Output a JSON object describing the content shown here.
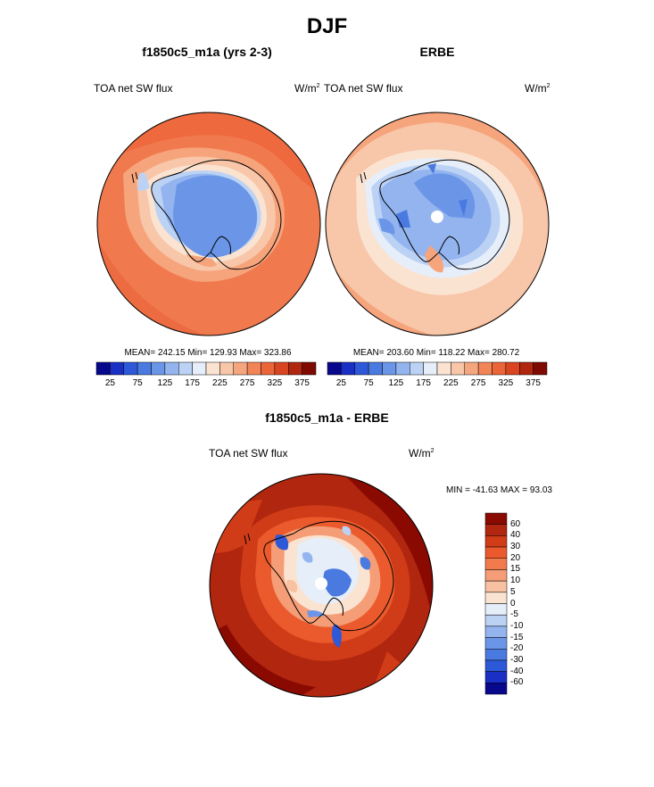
{
  "page": {
    "title": "DJF",
    "bottom_title": "f1850c5_m1a - ERBE"
  },
  "panels": {
    "left": {
      "title": "f1850c5_m1a (yrs 2-3)",
      "variable": "TOA net SW flux",
      "units": "W/m",
      "units_sup": "2",
      "stats": "MEAN= 242.15  Min= 129.93  Max= 323.86"
    },
    "right": {
      "title": "ERBE",
      "variable": "TOA net SW flux",
      "units": "W/m",
      "units_sup": "2",
      "stats": "MEAN= 203.60  Min= 118.22  Max= 280.72"
    },
    "diff": {
      "variable": "TOA net SW flux",
      "units": "W/m",
      "units_sup": "2",
      "stats": "MIN = -41.63 MAX =  93.03"
    }
  },
  "colorbar_abs": {
    "colors": [
      "#08088c",
      "#1a2fc4",
      "#2d58d8",
      "#4a7ae0",
      "#6b96e8",
      "#93b4ee",
      "#bcd2f4",
      "#e6eefa",
      "#fbe3d2",
      "#f8c6a8",
      "#f5a67e",
      "#f28558",
      "#ec6538",
      "#d84520",
      "#b0260f",
      "#7e0a02"
    ],
    "tick_labels": [
      "25",
      "75",
      "125",
      "175",
      "225",
      "275",
      "325",
      "375"
    ]
  },
  "colorbar_diff": {
    "colors": [
      "#8a0a02",
      "#b0260f",
      "#d03b18",
      "#ea5a2c",
      "#f27a4c",
      "#f59d76",
      "#f8c1a2",
      "#fbe3d2",
      "#e6eefa",
      "#bcd2f4",
      "#93b4ee",
      "#6b96e8",
      "#4a7ae0",
      "#2d58d8",
      "#1a2fc4",
      "#08088c"
    ],
    "tick_labels": [
      "60",
      "40",
      "30",
      "20",
      "15",
      "10",
      "5",
      "0",
      "-5",
      "-10",
      "-15",
      "-20",
      "-30",
      "-40",
      "-60"
    ]
  }
}
